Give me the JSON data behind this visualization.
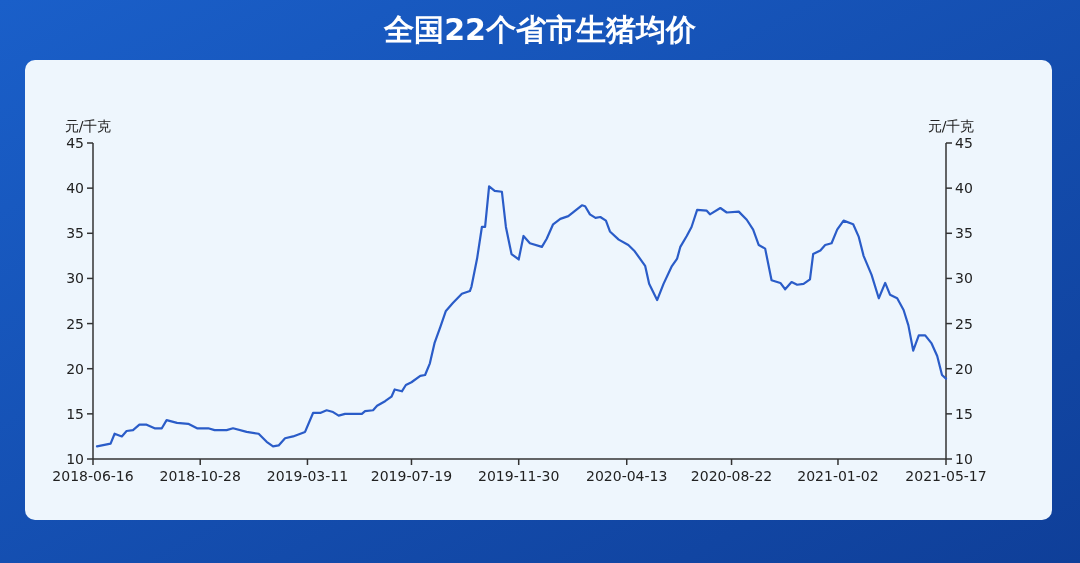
{
  "chart_data": {
    "type": "line",
    "title": "全国22个省市生猪均价",
    "ylabel": "元/千克",
    "y2label": "元/千克",
    "xlim": [
      "2018-06-16",
      "2021-05-17"
    ],
    "xticks": [
      "2018-06-16",
      "2018-10-28",
      "2019-03-11",
      "2019-07-19",
      "2019-11-30",
      "2020-04-13",
      "2020-08-22",
      "2021-01-02",
      "2021-05-17"
    ],
    "ylim": [
      10,
      45
    ],
    "yticks": [
      10,
      15,
      20,
      25,
      30,
      35,
      40,
      45
    ],
    "y2lim": [
      10,
      45
    ],
    "y2ticks": [
      10,
      15,
      20,
      25,
      30,
      35,
      40,
      45
    ],
    "x": [
      "2018-06-21",
      "2018-07-08",
      "2018-07-13",
      "2018-07-22",
      "2018-07-28",
      "2018-08-05",
      "2018-08-13",
      "2018-08-22",
      "2018-09-01",
      "2018-09-10",
      "2018-09-16",
      "2018-09-29",
      "2018-10-13",
      "2018-10-24",
      "2018-11-07",
      "2018-11-15",
      "2018-11-30",
      "2018-12-08",
      "2018-12-25",
      "2019-01-09",
      "2019-01-19",
      "2019-01-27",
      "2019-02-03",
      "2019-02-11",
      "2019-02-21",
      "2019-03-08",
      "2019-03-18",
      "2019-03-27",
      "2019-04-04",
      "2019-04-12",
      "2019-04-19",
      "2019-04-27",
      "2019-05-18",
      "2019-05-22",
      "2019-06-01",
      "2019-06-06",
      "2019-06-16",
      "2019-06-24",
      "2019-06-28",
      "2019-07-07",
      "2019-07-12",
      "2019-07-19",
      "2019-07-30",
      "2019-08-05",
      "2019-08-11",
      "2019-08-17",
      "2019-08-24",
      "2019-08-31",
      "2019-09-09",
      "2019-09-20",
      "2019-09-30",
      "2019-10-02",
      "2019-10-09",
      "2019-10-15",
      "2019-10-19",
      "2019-10-24",
      "2019-10-31",
      "2019-11-09",
      "2019-11-14",
      "2019-11-21",
      "2019-11-30",
      "2019-12-06",
      "2019-12-14",
      "2019-12-29",
      "2020-01-04",
      "2020-01-12",
      "2020-01-21",
      "2020-01-31",
      "2020-02-17",
      "2020-02-21",
      "2020-02-27",
      "2020-03-05",
      "2020-03-11",
      "2020-03-18",
      "2020-03-23",
      "2020-04-03",
      "2020-04-15",
      "2020-04-23",
      "2020-05-06",
      "2020-05-11",
      "2020-05-21",
      "2020-05-29",
      "2020-06-08",
      "2020-06-15",
      "2020-06-19",
      "2020-06-27",
      "2020-07-03",
      "2020-07-10",
      "2020-07-22",
      "2020-07-26",
      "2020-08-08",
      "2020-08-16",
      "2020-08-31",
      "2020-09-10",
      "2020-09-18",
      "2020-09-25",
      "2020-10-03",
      "2020-10-11",
      "2020-10-22",
      "2020-10-28",
      "2020-11-05",
      "2020-11-12",
      "2020-11-20",
      "2020-11-28",
      "2020-12-02",
      "2020-12-11",
      "2020-12-17",
      "2020-12-25",
      "2021-01-01",
      "2021-01-09",
      "2021-01-21",
      "2021-01-28",
      "2021-02-03",
      "2021-02-13",
      "2021-02-22",
      "2021-03-02",
      "2021-03-08",
      "2021-03-17",
      "2021-03-25",
      "2021-03-31",
      "2021-04-06",
      "2021-04-13",
      "2021-04-21",
      "2021-04-29",
      "2021-05-06",
      "2021-05-12",
      "2021-05-17"
    ],
    "series": [
      {
        "color": "#2a5cc8",
        "values": [
          11.4,
          11.7,
          12.8,
          12.5,
          13.1,
          13.2,
          13.8,
          13.8,
          13.4,
          13.4,
          14.3,
          14.0,
          13.9,
          13.4,
          13.4,
          13.2,
          13.2,
          13.4,
          13.0,
          12.8,
          11.9,
          11.4,
          11.5,
          12.3,
          12.5,
          13.0,
          15.1,
          15.1,
          15.4,
          15.2,
          14.8,
          15.0,
          15.0,
          15.3,
          15.4,
          15.9,
          16.4,
          16.9,
          17.7,
          17.5,
          18.2,
          18.5,
          19.2,
          19.3,
          20.6,
          22.9,
          24.6,
          26.4,
          27.3,
          28.3,
          28.6,
          29.1,
          32.2,
          35.7,
          35.7,
          40.2,
          39.7,
          39.6,
          35.7,
          32.7,
          32.1,
          34.7,
          33.9,
          33.5,
          34.4,
          36.0,
          36.6,
          36.9,
          38.1,
          38.0,
          37.1,
          36.7,
          36.8,
          36.4,
          35.2,
          34.3,
          33.7,
          33.0,
          31.4,
          29.4,
          27.6,
          29.4,
          31.3,
          32.2,
          33.5,
          34.7,
          35.7,
          37.6,
          37.5,
          37.1,
          37.8,
          37.3,
          37.4,
          36.5,
          35.4,
          33.7,
          33.3,
          29.8,
          29.5,
          28.8,
          29.6,
          29.3,
          29.4,
          29.9,
          32.7,
          33.1,
          33.7,
          33.9,
          35.4,
          36.4,
          36.0,
          34.6,
          32.5,
          30.4,
          27.8,
          29.5,
          28.2,
          27.8,
          26.5,
          24.8,
          22.0,
          23.7,
          23.7,
          22.8,
          21.4,
          19.3,
          18.9
        ]
      }
    ]
  }
}
